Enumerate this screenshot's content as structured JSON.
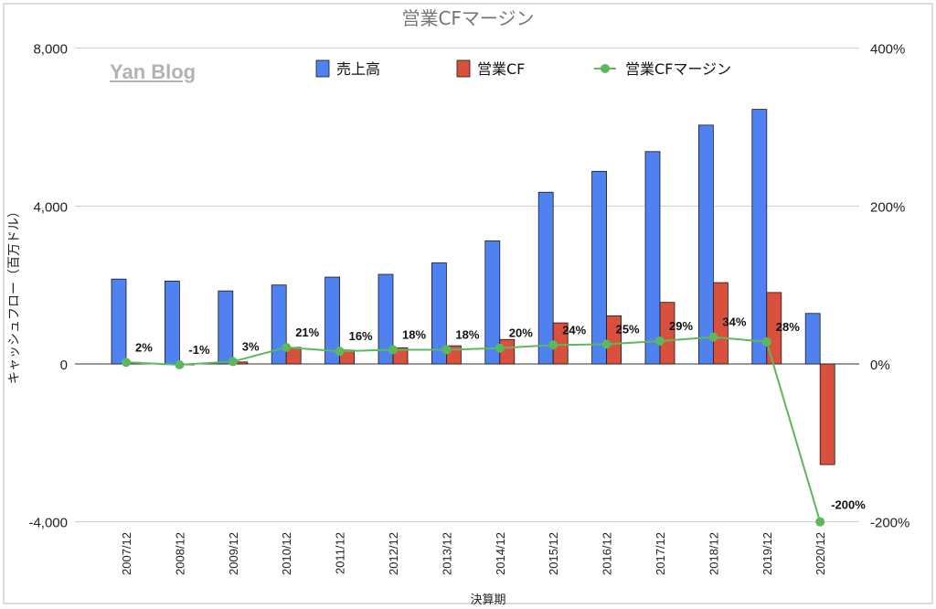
{
  "chart_data": {
    "type": "bar",
    "title": "営業CFマージン",
    "xlabel": "決算期",
    "ylabel": "キャッシュフロー（百万ドル）",
    "ylim": [
      -4000,
      8000
    ],
    "y2lim": [
      -200,
      400
    ],
    "yticks": [
      "-4,000",
      "0",
      "4,000",
      "8,000"
    ],
    "y2ticks": [
      "-200%",
      "0%",
      "200%",
      "400%"
    ],
    "grid": true,
    "legend_position": "top",
    "categories": [
      "2007/12",
      "2008/12",
      "2009/12",
      "2010/12",
      "2011/12",
      "2012/12",
      "2013/12",
      "2014/12",
      "2015/12",
      "2016/12",
      "2017/12",
      "2018/12",
      "2019/12",
      "2020/12"
    ],
    "series": [
      {
        "name": "売上高",
        "type": "bar",
        "color": "#4f81f0",
        "values": [
          2150,
          2100,
          1850,
          2000,
          2200,
          2270,
          2560,
          3120,
          4350,
          4880,
          5380,
          6050,
          6450,
          1280
        ]
      },
      {
        "name": "営業CF",
        "type": "bar",
        "color": "#d9503d",
        "values": [
          40,
          -20,
          50,
          420,
          350,
          410,
          460,
          620,
          1040,
          1220,
          1560,
          2060,
          1810,
          -2550
        ]
      },
      {
        "name": "営業CFマージン",
        "type": "line",
        "axis": "right",
        "color": "#5cb85c",
        "values": [
          2,
          -1,
          3,
          21,
          16,
          18,
          18,
          20,
          24,
          25,
          29,
          34,
          28,
          -200
        ],
        "labels": [
          "2%",
          "-1%",
          "3%",
          "21%",
          "16%",
          "18%",
          "18%",
          "20%",
          "24%",
          "25%",
          "29%",
          "34%",
          "28%",
          "-200%"
        ]
      }
    ]
  },
  "watermark": "Yan Blog"
}
